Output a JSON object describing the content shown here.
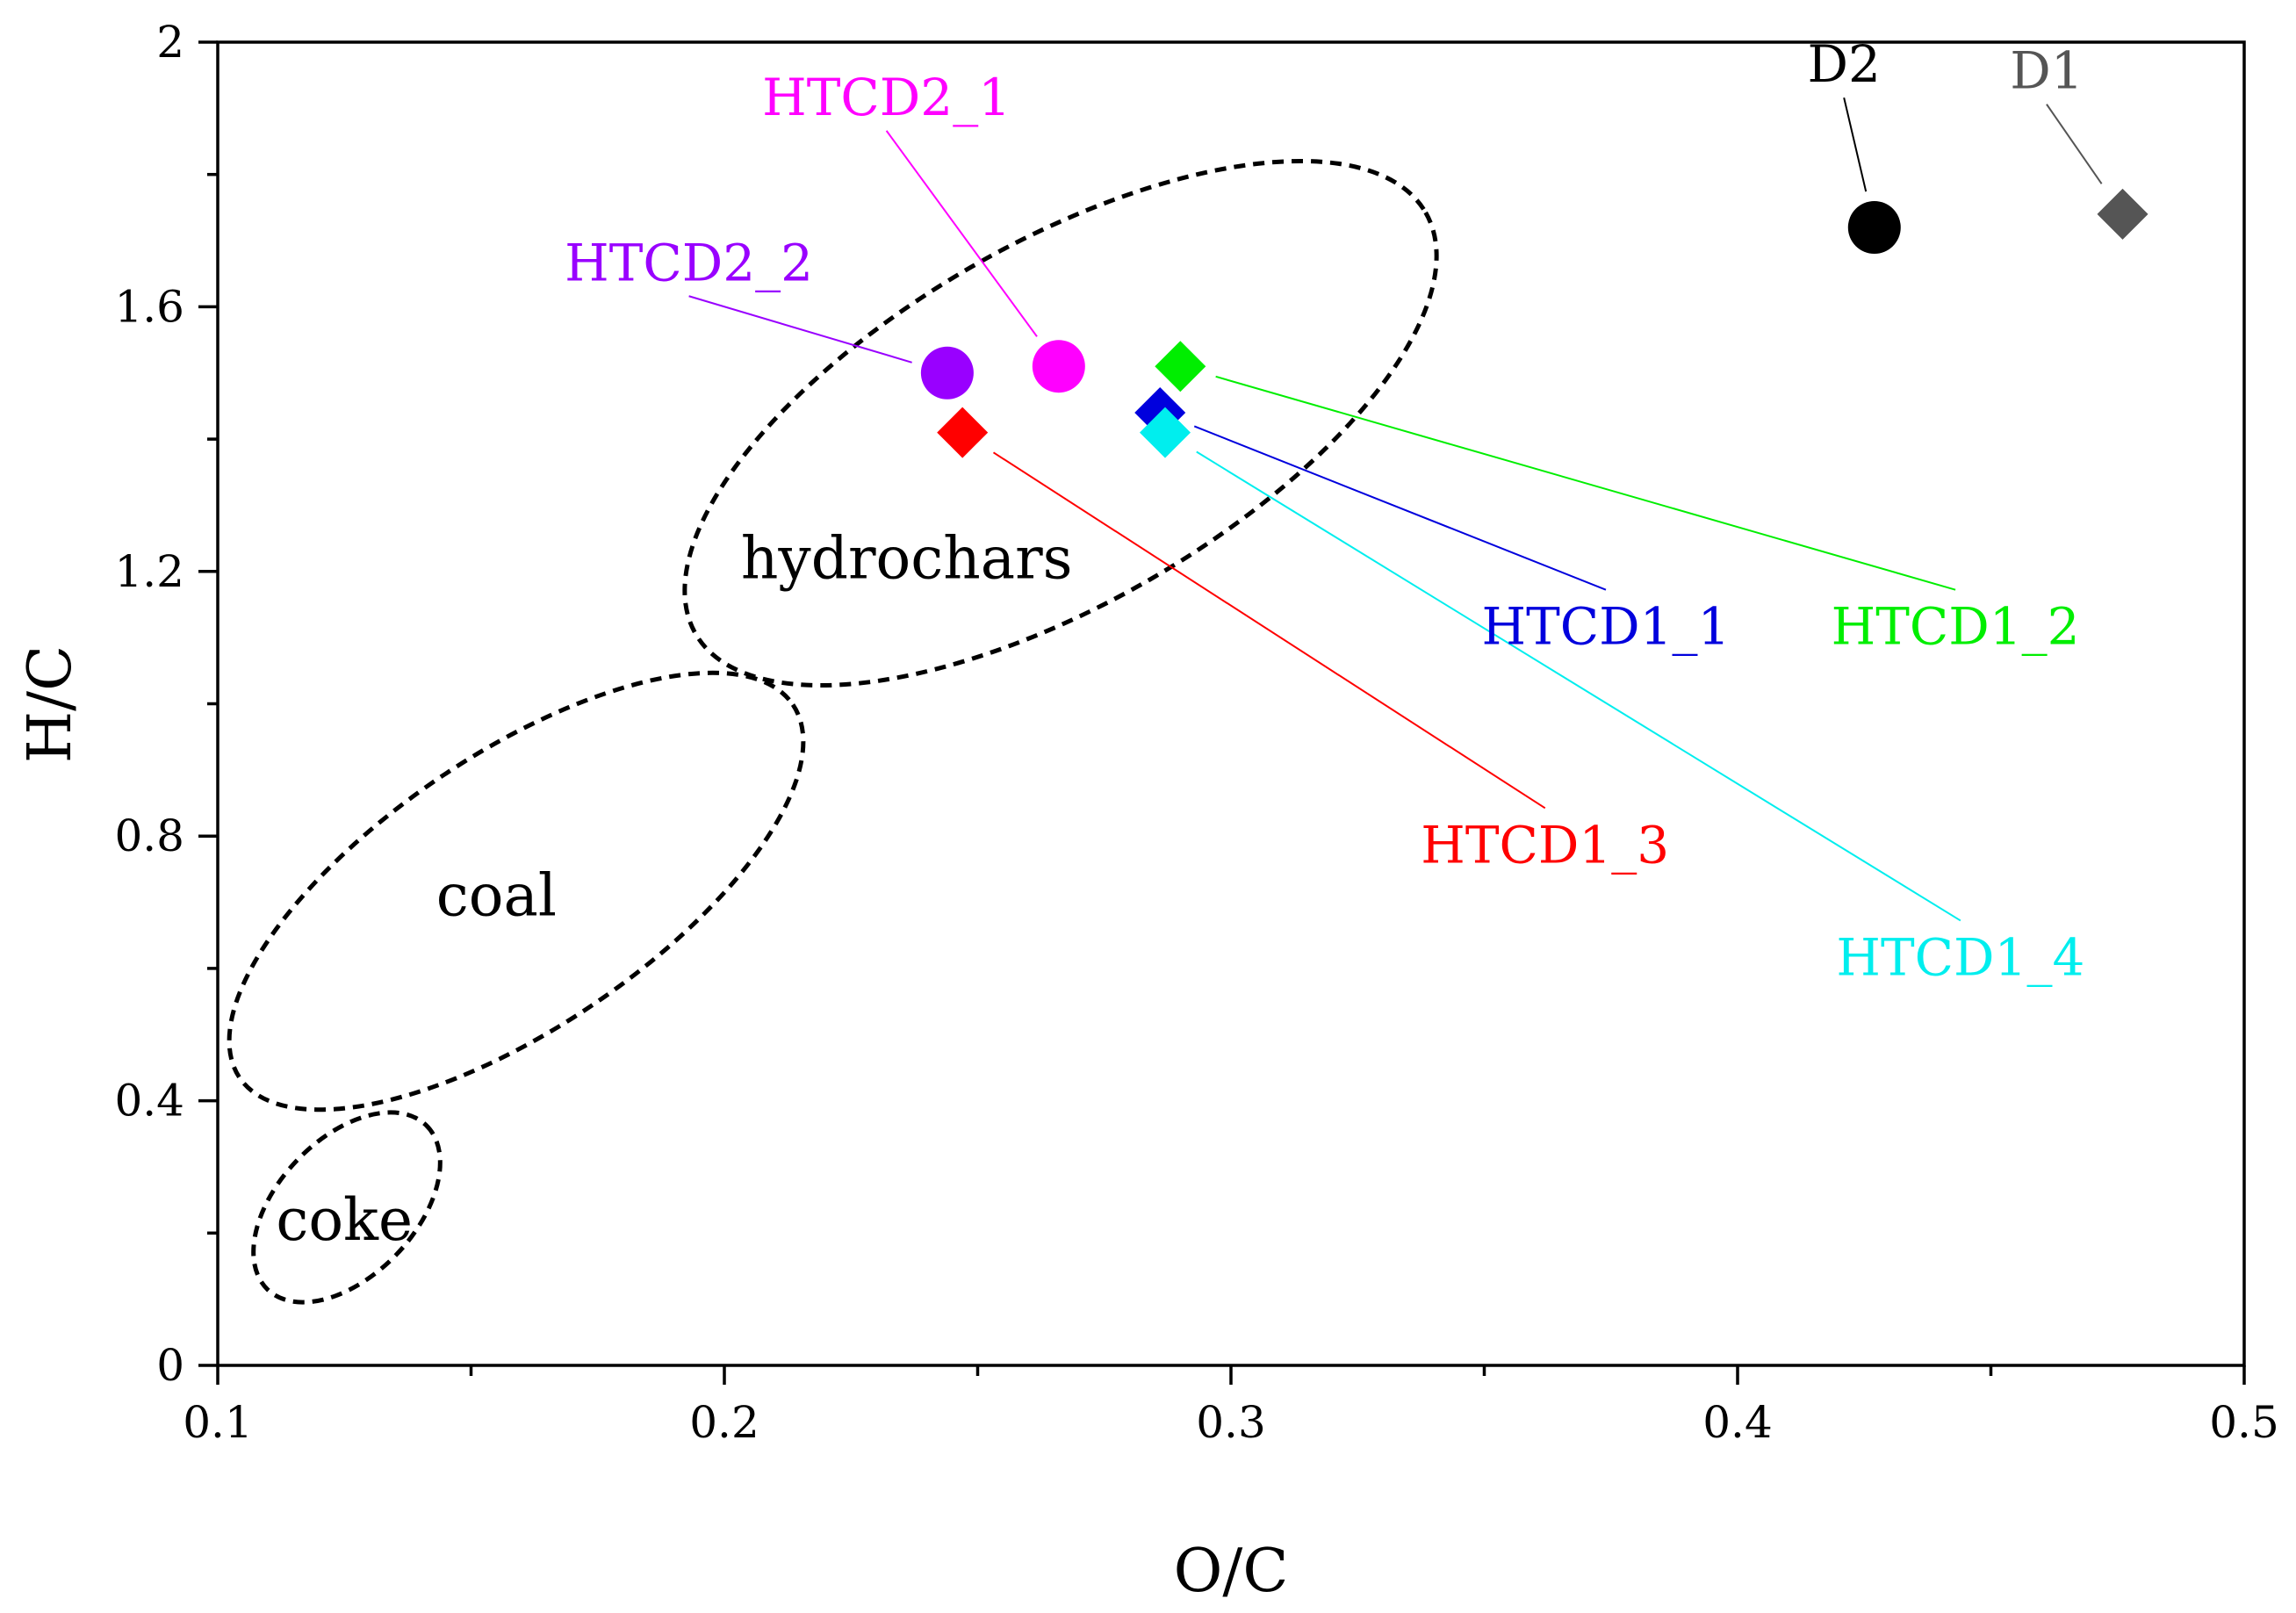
{
  "chart_data": {
    "type": "scatter",
    "title": "",
    "xlabel": "O/C",
    "ylabel": "H/C",
    "xlim": [
      0.1,
      0.5
    ],
    "ylim": [
      0,
      2
    ],
    "x_ticks": [
      0.1,
      0.2,
      0.3,
      0.4,
      0.5
    ],
    "x_tick_labels": [
      "0.1",
      "0.2",
      "0.3",
      "0.4",
      "0.5"
    ],
    "y_ticks": [
      0,
      0.4,
      0.8,
      1.2,
      1.6,
      2
    ],
    "y_tick_labels": [
      "0",
      "0.4",
      "0.8",
      "1.2",
      "1.6",
      "2"
    ],
    "grid": false,
    "series": [
      {
        "name": "D1",
        "x": 0.476,
        "y": 1.74,
        "marker": "diamond",
        "color": "#555555",
        "label_x": 0.461,
        "label_y": 1.93,
        "label_anchor": "middle"
      },
      {
        "name": "D2",
        "x": 0.427,
        "y": 1.72,
        "marker": "circle",
        "color": "#000000",
        "label_x": 0.421,
        "label_y": 1.94,
        "label_anchor": "middle"
      },
      {
        "name": "HTCD2_1",
        "x": 0.266,
        "y": 1.51,
        "marker": "circle",
        "color": "#ff00ff",
        "label_x": 0.232,
        "label_y": 1.89,
        "label_anchor": "middle"
      },
      {
        "name": "HTCD2_2",
        "x": 0.244,
        "y": 1.5,
        "marker": "circle",
        "color": "#9900ff",
        "label_x": 0.193,
        "label_y": 1.64,
        "label_anchor": "middle"
      },
      {
        "name": "HTCD1_1",
        "x": 0.286,
        "y": 1.44,
        "marker": "diamond",
        "color": "#0000dd",
        "label_x": 0.374,
        "label_y": 1.09,
        "label_anchor": "middle"
      },
      {
        "name": "HTCD1_2",
        "x": 0.29,
        "y": 1.51,
        "marker": "diamond",
        "color": "#00ee00",
        "label_x": 0.443,
        "label_y": 1.09,
        "label_anchor": "middle"
      },
      {
        "name": "HTCD1_3",
        "x": 0.247,
        "y": 1.41,
        "marker": "diamond",
        "color": "#ff0000",
        "label_x": 0.362,
        "label_y": 0.76,
        "label_anchor": "middle"
      },
      {
        "name": "HTCD1_4",
        "x": 0.287,
        "y": 1.41,
        "marker": "diamond",
        "color": "#00eeee",
        "label_x": 0.444,
        "label_y": 0.59,
        "label_anchor": "middle"
      }
    ],
    "regions": [
      {
        "name": "hydrochars",
        "label_x": 0.236,
        "label_y": 1.19
      },
      {
        "name": "coal",
        "label_x": 0.155,
        "label_y": 0.68
      },
      {
        "name": "coke",
        "label_x": 0.125,
        "label_y": 0.19
      }
    ]
  }
}
